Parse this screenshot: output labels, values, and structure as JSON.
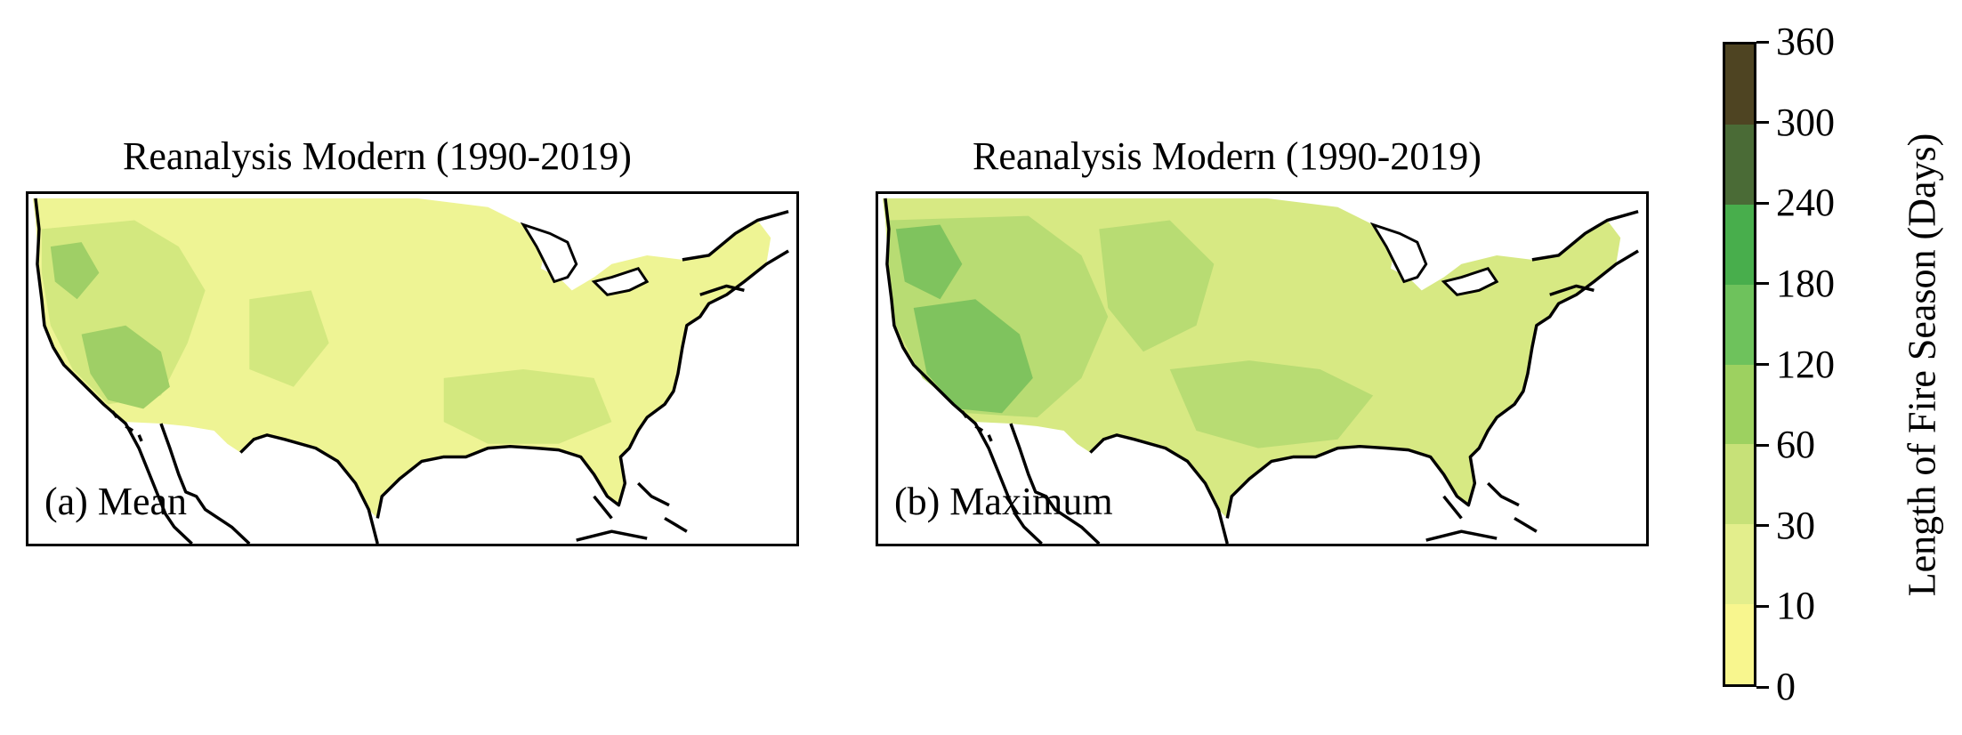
{
  "panels": [
    {
      "title": "Reanalysis Modern (1990-2019)",
      "label": "(a) Mean",
      "stat": "mean"
    },
    {
      "title": "Reanalysis Modern (1990-2019)",
      "label": "(b) Maximum",
      "stat": "maximum"
    }
  ],
  "colorbar": {
    "title": "Length of Fire Season (Days)",
    "ticks": [
      "0",
      "10",
      "30",
      "60",
      "120",
      "180",
      "240",
      "300",
      "360"
    ],
    "colors": [
      "#f8f68e",
      "#e3ee8c",
      "#c7e178",
      "#9dd160",
      "#6ec25c",
      "#48ae4c",
      "#4a6b36",
      "#4e4422",
      "#500707"
    ]
  },
  "map_colors": {
    "ocean": "#ffffff",
    "coast": "#000000",
    "mean_base": "#eef494",
    "mean_mid": "#d3e87f",
    "mean_high": "#9fcf66",
    "max_base": "#d7e983",
    "max_mid": "#b8dc73",
    "max_high": "#7fc35e"
  }
}
